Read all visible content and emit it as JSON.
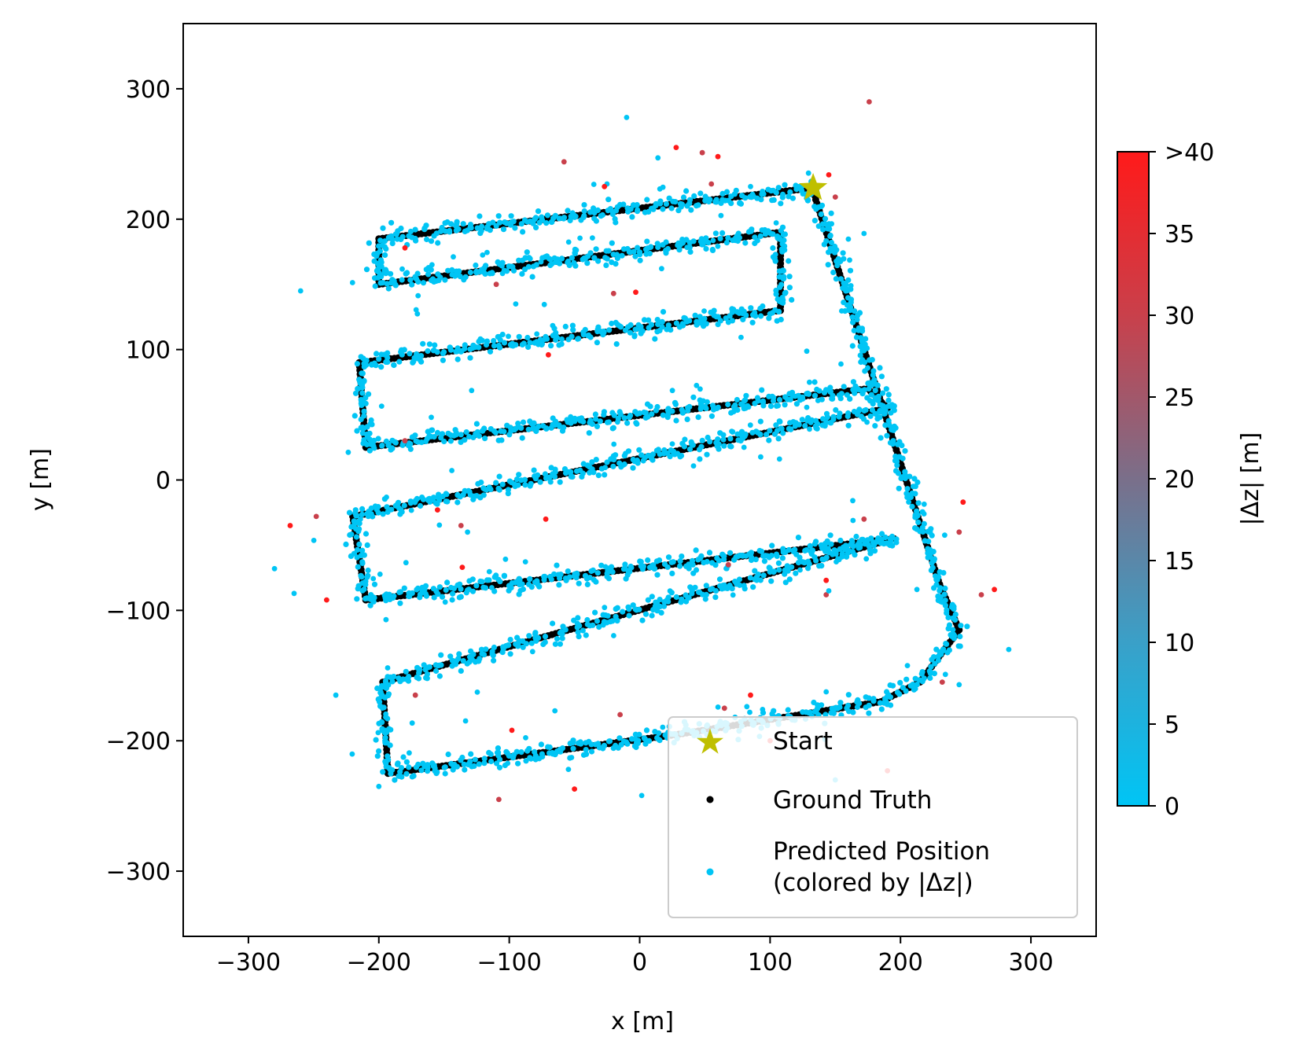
{
  "chart_data": {
    "type": "scatter",
    "title": "",
    "xlabel": "x [m]",
    "ylabel": "y [m]",
    "xlim": [
      -350,
      350
    ],
    "ylim": [
      -350,
      350
    ],
    "xticks": [
      -300,
      -200,
      -100,
      0,
      100,
      200,
      300
    ],
    "yticks": [
      -300,
      -200,
      -100,
      0,
      100,
      200,
      300
    ],
    "xtick_labels": [
      "−300",
      "−200",
      "−100",
      "0",
      "100",
      "200",
      "300"
    ],
    "ytick_labels": [
      "−300",
      "−200",
      "−100",
      "0",
      "100",
      "200",
      "300"
    ],
    "grid": false,
    "legend_position": "lower-right",
    "start": {
      "x": 133,
      "y": 224
    },
    "ground_truth_path": [
      [
        133,
        224
      ],
      [
        -200,
        185
      ],
      [
        -200,
        150
      ],
      [
        108,
        190
      ],
      [
        108,
        130
      ],
      [
        -215,
        90
      ],
      [
        -210,
        25
      ],
      [
        175,
        70
      ],
      [
        190,
        55
      ],
      [
        -220,
        -28
      ],
      [
        -210,
        -92
      ],
      [
        195,
        -45
      ],
      [
        -197,
        -155
      ],
      [
        -193,
        -225
      ],
      [
        30,
        -195
      ],
      [
        185,
        -170
      ],
      [
        215,
        -155
      ],
      [
        245,
        -115
      ],
      [
        230,
        -80
      ],
      [
        135,
        215
      ],
      [
        133,
        224
      ]
    ],
    "outliers": [
      [
        -10,
        278
      ],
      [
        28,
        255
      ],
      [
        -58,
        244
      ],
      [
        14,
        247
      ],
      [
        60,
        248
      ],
      [
        48,
        251
      ],
      [
        -25,
        227
      ],
      [
        -27,
        225
      ],
      [
        55,
        227
      ],
      [
        85,
        225
      ],
      [
        145,
        234
      ],
      [
        150,
        217
      ],
      [
        172,
        189
      ],
      [
        -180,
        178
      ],
      [
        -110,
        150
      ],
      [
        -95,
        135
      ],
      [
        -3,
        144
      ],
      [
        -20,
        143
      ],
      [
        162,
        149
      ],
      [
        -70,
        96
      ],
      [
        -180,
        30
      ],
      [
        80,
        25
      ],
      [
        -155,
        -23
      ],
      [
        -137,
        -35
      ],
      [
        -132,
        -40
      ],
      [
        -72,
        -30
      ],
      [
        172,
        -30
      ],
      [
        -265,
        -87
      ],
      [
        -136,
        -67
      ],
      [
        68,
        -65
      ],
      [
        65,
        -83
      ],
      [
        143,
        -77
      ],
      [
        143,
        -88
      ],
      [
        145,
        -85
      ],
      [
        272,
        -84
      ],
      [
        245,
        -40
      ],
      [
        -200,
        -235
      ],
      [
        -50,
        -237
      ],
      [
        65,
        -175
      ],
      [
        150,
        -230
      ],
      [
        190,
        -223
      ],
      [
        232,
        -155
      ],
      [
        245,
        -157
      ],
      [
        85,
        -165
      ],
      [
        -108,
        -245
      ],
      [
        -260,
        145
      ],
      [
        248,
        -17
      ],
      [
        262,
        -88
      ],
      [
        283,
        -130
      ],
      [
        -268,
        -35
      ],
      [
        -248,
        -28
      ],
      [
        -280,
        -68
      ],
      [
        -240,
        -92
      ],
      [
        -172,
        -165
      ],
      [
        -233,
        -165
      ],
      [
        -98,
        -192
      ],
      [
        -15,
        -180
      ],
      [
        -65,
        -177
      ],
      [
        100,
        -200
      ],
      [
        176,
        290
      ]
    ],
    "series": [
      {
        "name": "Start",
        "marker": "star",
        "color": "#bfbf00"
      },
      {
        "name": "Ground Truth",
        "marker": "dot",
        "color": "#000000"
      },
      {
        "name": "Predicted Position\n(colored by |Δz|)",
        "marker": "dot",
        "color": "#00c5f5"
      }
    ],
    "colorbar": {
      "label": "|Δz| [m]",
      "range": [
        0,
        40
      ],
      "ticks": [
        0,
        5,
        10,
        15,
        20,
        25,
        30,
        35,
        40
      ],
      "tick_labels": [
        "0",
        "5",
        "10",
        "15",
        "20",
        "25",
        "30",
        "35",
        ">40"
      ],
      "colors": [
        "#00c5f5",
        "#3aa0c8",
        "#7a6f8a",
        "#c9404b",
        "#ff1a1a"
      ]
    }
  },
  "legend": {
    "start_label": "Start",
    "ground_truth_label": "Ground Truth",
    "predicted_label_line1": "Predicted Position",
    "predicted_label_line2": "(colored by |Δz|)"
  }
}
